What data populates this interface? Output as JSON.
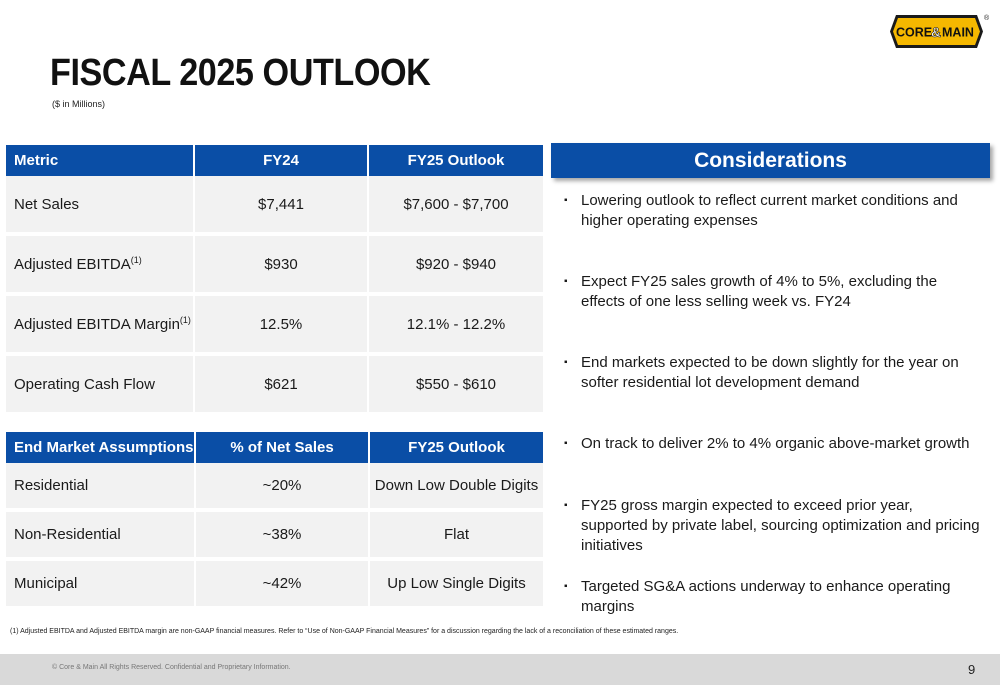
{
  "header": {
    "title": "FISCAL 2025 OUTLOOK",
    "subtitle": "($ in Millions)",
    "logo_text_left": "CORE",
    "logo_text_amp": "&",
    "logo_text_right": "MAIN",
    "logo_mark": "®"
  },
  "metrics_table": {
    "headers": [
      "Metric",
      "FY24",
      "FY25 Outlook"
    ],
    "rows": [
      {
        "metric": "Net Sales",
        "sup": "",
        "fy24": "$7,441",
        "fy25": "$7,600 - $7,700"
      },
      {
        "metric": "Adjusted EBITDA",
        "sup": "(1)",
        "fy24": "$930",
        "fy25": "$920 - $940"
      },
      {
        "metric": "Adjusted EBITDA Margin",
        "sup": "(1)",
        "fy24": "12.5%",
        "fy25": "12.1% - 12.2%"
      },
      {
        "metric": "Operating Cash Flow",
        "sup": "",
        "fy24": "$621",
        "fy25": "$550 - $610"
      }
    ]
  },
  "market_table": {
    "headers": [
      "End Market Assumptions",
      "% of Net Sales",
      "FY25 Outlook"
    ],
    "rows": [
      {
        "market": "Residential",
        "pct": "~20%",
        "outlook": "Down Low Double Digits"
      },
      {
        "market": "Non-Residential",
        "pct": "~38%",
        "outlook": "Flat"
      },
      {
        "market": "Municipal",
        "pct": "~42%",
        "outlook": "Up Low Single Digits"
      }
    ]
  },
  "considerations": {
    "title": "Considerations",
    "bullet_symbol": "▪",
    "items": [
      "Lowering outlook to reflect current market conditions and higher operating expenses",
      "Expect FY25 sales growth of 4% to 5%, excluding the effects of one less selling week vs. FY24",
      "End markets expected to be down slightly for the year on softer residential lot development demand",
      "On track to deliver 2% to 4% organic above-market growth",
      "FY25 gross margin expected to exceed prior year, supported by private label, sourcing optimization and pricing initiatives",
      "Targeted SG&A actions underway to enhance operating margins"
    ]
  },
  "footnote": "(1) Adjusted EBITDA and Adjusted EBITDA margin are non-GAAP financial measures. Refer to “Use of Non-GAAP Financial Measures” for a discussion regarding the lack of a reconciliation of these estimated ranges.",
  "footer": {
    "copyright": "© Core & Main  All Rights Reserved. Confidential and Proprietary Information.",
    "page_number": "9"
  },
  "colors": {
    "header_blue": "#0a4ea6",
    "row_gray": "#f2f2f2",
    "logo_yellow": "#f5b800",
    "footer_gray": "#d9d9d9"
  }
}
